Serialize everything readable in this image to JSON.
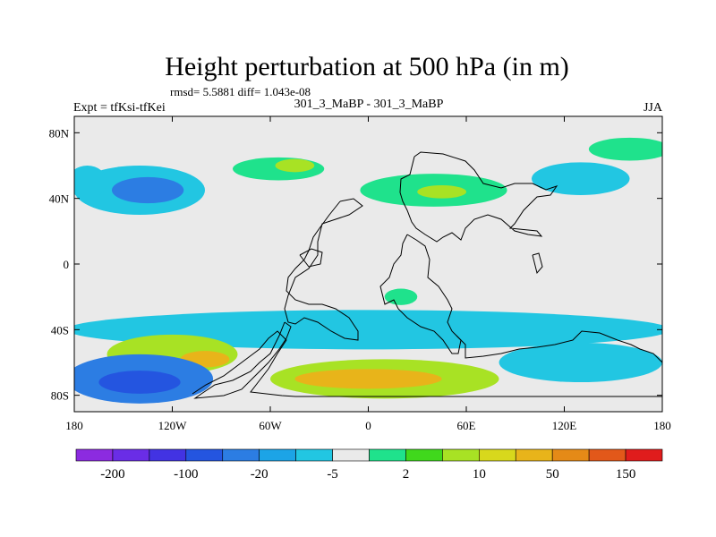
{
  "chart_data": {
    "type": "heatmap",
    "title": "Height perturbation at 500 hPa (in m)",
    "stats_line": "rmsd= 5.5881 diff= 1.043e-08",
    "center_label": "301_3_MaBP - 301_3_MaBP",
    "left_label": "Expt = tfKsi-tfKei",
    "right_label": "JJA",
    "x_ticks": [
      {
        "value": -180,
        "label": "180"
      },
      {
        "value": -120,
        "label": "120W"
      },
      {
        "value": -60,
        "label": "60W"
      },
      {
        "value": 0,
        "label": "0"
      },
      {
        "value": 60,
        "label": "60E"
      },
      {
        "value": 120,
        "label": "120E"
      },
      {
        "value": 180,
        "label": "180"
      }
    ],
    "y_ticks": [
      {
        "value": 80,
        "label": "80N"
      },
      {
        "value": 40,
        "label": "40N"
      },
      {
        "value": 0,
        "label": "0"
      },
      {
        "value": -40,
        "label": "40S"
      },
      {
        "value": -80,
        "label": "80S"
      }
    ],
    "xlim": [
      -180,
      180
    ],
    "ylim": [
      -90,
      90
    ],
    "colorbar": {
      "colors": [
        "#8c2be0",
        "#6a2de6",
        "#4233e3",
        "#2455e0",
        "#2c7de3",
        "#1ca4e6",
        "#22c6e2",
        "#eaeaea",
        "#1fe28c",
        "#40d81c",
        "#a8e224",
        "#d8d81c",
        "#e8b41a",
        "#e58a17",
        "#e2581a",
        "#e01c1c"
      ],
      "labels": [
        {
          "boundary": 1,
          "label": "-200"
        },
        {
          "boundary": 3,
          "label": "-100"
        },
        {
          "boundary": 5,
          "label": "-20"
        },
        {
          "boundary": 7,
          "label": "-5"
        },
        {
          "boundary": 9,
          "label": "2"
        },
        {
          "boundary": 11,
          "label": "10"
        },
        {
          "boundary": 13,
          "label": "50"
        },
        {
          "boundary": 15,
          "label": "150"
        }
      ]
    },
    "anomaly_regions": [
      {
        "name": "nh-pacific-negative",
        "lon": -140,
        "lat": 45,
        "rx": 40,
        "ry": 15,
        "level": "-5"
      },
      {
        "name": "nh-pacific-core",
        "lon": -135,
        "lat": 45,
        "rx": 22,
        "ry": 8,
        "level": "-20"
      },
      {
        "name": "nh-west-band",
        "lon": -172,
        "lat": 50,
        "rx": 12,
        "ry": 10,
        "level": "-5"
      },
      {
        "name": "nh-atlantic-positive",
        "lon": -55,
        "lat": 58,
        "rx": 28,
        "ry": 7,
        "level": "2"
      },
      {
        "name": "nh-atlantic-core",
        "lon": -45,
        "lat": 60,
        "rx": 12,
        "ry": 4,
        "level": "10"
      },
      {
        "name": "nh-eurasia-positive",
        "lon": 40,
        "lat": 45,
        "rx": 45,
        "ry": 10,
        "level": "2"
      },
      {
        "name": "nh-eurasia-core",
        "lon": 45,
        "lat": 44,
        "rx": 15,
        "ry": 4,
        "level": "10"
      },
      {
        "name": "nh-asia-negative",
        "lon": 130,
        "lat": 52,
        "rx": 30,
        "ry": 10,
        "level": "-5"
      },
      {
        "name": "nh-northeast-positive",
        "lon": 160,
        "lat": 70,
        "rx": 25,
        "ry": 7,
        "level": "2"
      },
      {
        "name": "sh-atlantic-positive",
        "lon": 20,
        "lat": -20,
        "rx": 10,
        "ry": 5,
        "level": "2"
      },
      {
        "name": "sh-mid-negative-band",
        "lon": 0,
        "lat": -40,
        "rx": 185,
        "ry": 12,
        "level": "-5"
      },
      {
        "name": "sh-60w-positive",
        "lon": -120,
        "lat": -55,
        "rx": 40,
        "ry": 12,
        "level": "10"
      },
      {
        "name": "sh-60w-core",
        "lon": -100,
        "lat": -58,
        "rx": 15,
        "ry": 5,
        "level": "50"
      },
      {
        "name": "sh-atlantic-band",
        "lon": 10,
        "lat": -70,
        "rx": 70,
        "ry": 12,
        "level": "10"
      },
      {
        "name": "sh-atlantic-core",
        "lon": 0,
        "lat": -70,
        "rx": 45,
        "ry": 6,
        "level": "50"
      },
      {
        "name": "sh-pacific-negative",
        "lon": -140,
        "lat": -70,
        "rx": 45,
        "ry": 15,
        "level": "-20"
      },
      {
        "name": "sh-pacific-core",
        "lon": -140,
        "lat": -72,
        "rx": 25,
        "ry": 7,
        "level": "-100"
      },
      {
        "name": "sh-indian-negative",
        "lon": 130,
        "lat": -60,
        "rx": 50,
        "ry": 12,
        "level": "-5"
      }
    ]
  }
}
